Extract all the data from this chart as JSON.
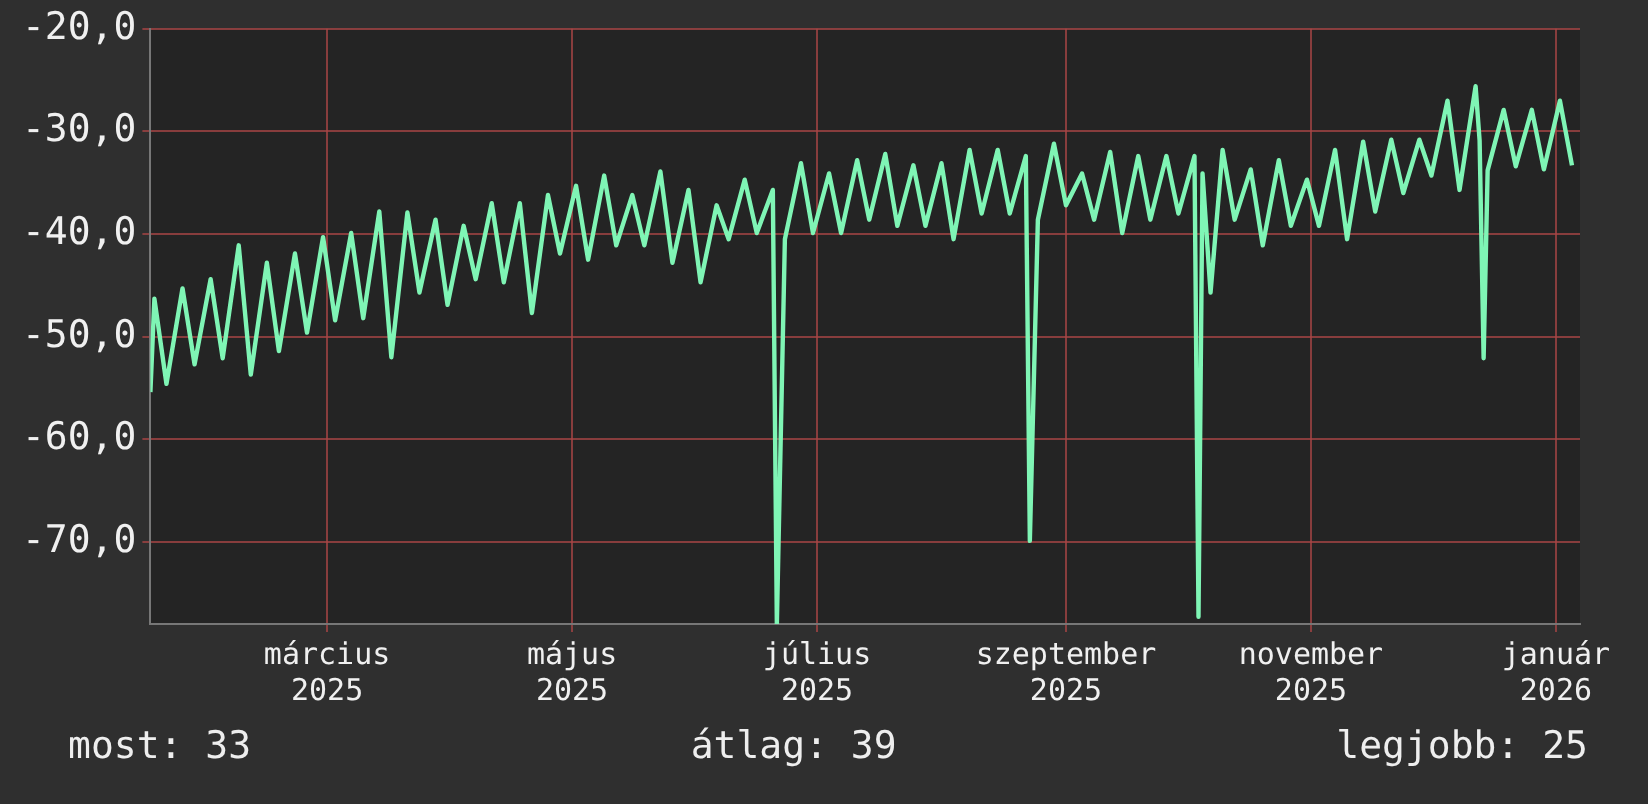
{
  "chart_data": {
    "type": "line",
    "color": "#7ff5b5",
    "grid": true,
    "legend": false,
    "marker": "none",
    "line_style": "solid",
    "ylim": [
      -78,
      -20
    ],
    "yticks": [
      {
        "value": -20,
        "label": "-20,0"
      },
      {
        "value": -30,
        "label": "-30,0"
      },
      {
        "value": -40,
        "label": "-40,0"
      },
      {
        "value": -50,
        "label": "-50,0"
      },
      {
        "value": -60,
        "label": "-60,0"
      },
      {
        "value": -70,
        "label": "-70,0"
      }
    ],
    "xlim": [
      "2025-01-16",
      "2026-01-07"
    ],
    "xticks": [
      {
        "value": "2025-03-01",
        "label": "március 2025"
      },
      {
        "value": "2025-05-01",
        "label": "május 2025"
      },
      {
        "value": "2025-07-01",
        "label": "július 2025"
      },
      {
        "value": "2025-09-01",
        "label": "szeptember 2025"
      },
      {
        "value": "2025-11-01",
        "label": "november 2025"
      },
      {
        "value": "2026-01-01",
        "label": "január 2026"
      }
    ],
    "annotations": [
      "most: 33",
      "átlag: 39",
      "legjobb: 25"
    ],
    "x": [
      "2025-01-16",
      "2025-01-17",
      "2025-01-20",
      "2025-01-24",
      "2025-01-27",
      "2025-01-31",
      "2025-02-03",
      "2025-02-07",
      "2025-02-10",
      "2025-02-14",
      "2025-02-17",
      "2025-02-21",
      "2025-02-24",
      "2025-02-28",
      "2025-03-03",
      "2025-03-07",
      "2025-03-10",
      "2025-03-14",
      "2025-03-17",
      "2025-03-21",
      "2025-03-24",
      "2025-03-28",
      "2025-03-31",
      "2025-04-04",
      "2025-04-07",
      "2025-04-11",
      "2025-04-14",
      "2025-04-18",
      "2025-04-21",
      "2025-04-25",
      "2025-04-28",
      "2025-05-02",
      "2025-05-05",
      "2025-05-09",
      "2025-05-12",
      "2025-05-16",
      "2025-05-19",
      "2025-05-23",
      "2025-05-26",
      "2025-05-30",
      "2025-06-02",
      "2025-06-06",
      "2025-06-09",
      "2025-06-13",
      "2025-06-16",
      "2025-06-20",
      "2025-06-21",
      "2025-06-23",
      "2025-06-27",
      "2025-06-30",
      "2025-07-04",
      "2025-07-07",
      "2025-07-11",
      "2025-07-14",
      "2025-07-18",
      "2025-07-21",
      "2025-07-25",
      "2025-07-28",
      "2025-08-01",
      "2025-08-04",
      "2025-08-08",
      "2025-08-11",
      "2025-08-15",
      "2025-08-18",
      "2025-08-22",
      "2025-08-23",
      "2025-08-25",
      "2025-08-29",
      "2025-09-01",
      "2025-09-05",
      "2025-09-08",
      "2025-09-12",
      "2025-09-15",
      "2025-09-19",
      "2025-09-22",
      "2025-09-26",
      "2025-09-29",
      "2025-10-03",
      "2025-10-04",
      "2025-10-05",
      "2025-10-07",
      "2025-10-10",
      "2025-10-13",
      "2025-10-17",
      "2025-10-20",
      "2025-10-24",
      "2025-10-27",
      "2025-10-31",
      "2025-11-03",
      "2025-11-07",
      "2025-11-10",
      "2025-11-14",
      "2025-11-17",
      "2025-11-21",
      "2025-11-24",
      "2025-11-28",
      "2025-12-01",
      "2025-12-05",
      "2025-12-08",
      "2025-12-12",
      "2025-12-13",
      "2025-12-14",
      "2025-12-15",
      "2025-12-19",
      "2025-12-22",
      "2025-12-26",
      "2025-12-29",
      "2026-01-02",
      "2026-01-05"
    ],
    "values": [
      -55.4,
      -46.3,
      -54.6,
      -45.3,
      -52.7,
      -44.4,
      -52.1,
      -41.1,
      -53.7,
      -42.8,
      -51.4,
      -41.9,
      -49.6,
      -40.3,
      -48.4,
      -39.9,
      -48.2,
      -37.8,
      -52.0,
      -37.9,
      -45.7,
      -38.6,
      -46.9,
      -39.2,
      -44.4,
      -37.0,
      -44.7,
      -37.0,
      -47.7,
      -36.2,
      -41.9,
      -35.3,
      -42.5,
      -34.3,
      -41.1,
      -36.2,
      -41.1,
      -33.9,
      -42.8,
      -35.7,
      -44.7,
      -37.2,
      -40.5,
      -34.7,
      -39.9,
      -35.7,
      -78,
      -40.5,
      -33.1,
      -39.9,
      -34.1,
      -39.9,
      -32.8,
      -38.6,
      -32.2,
      -39.2,
      -33.3,
      -39.2,
      -33.1,
      -40.5,
      -31.8,
      -38.0,
      -31.8,
      -38.0,
      -32.4,
      -69.9,
      -38.6,
      -31.2,
      -37.2,
      -34.1,
      -38.6,
      -32.0,
      -39.9,
      -32.4,
      -38.6,
      -32.4,
      -38.0,
      -32.4,
      -77.3,
      -34.1,
      -45.7,
      -31.8,
      -38.6,
      -33.7,
      -41.1,
      -32.8,
      -39.2,
      -34.7,
      -39.2,
      -31.8,
      -40.5,
      -31.0,
      -37.8,
      -30.8,
      -36.0,
      -30.8,
      -34.3,
      -27.0,
      -35.7,
      -25.6,
      -30.9,
      -52.1,
      -33.8,
      -27.9,
      -33.4,
      -27.9,
      -33.7,
      -27.0,
      -33.3
    ]
  }
}
